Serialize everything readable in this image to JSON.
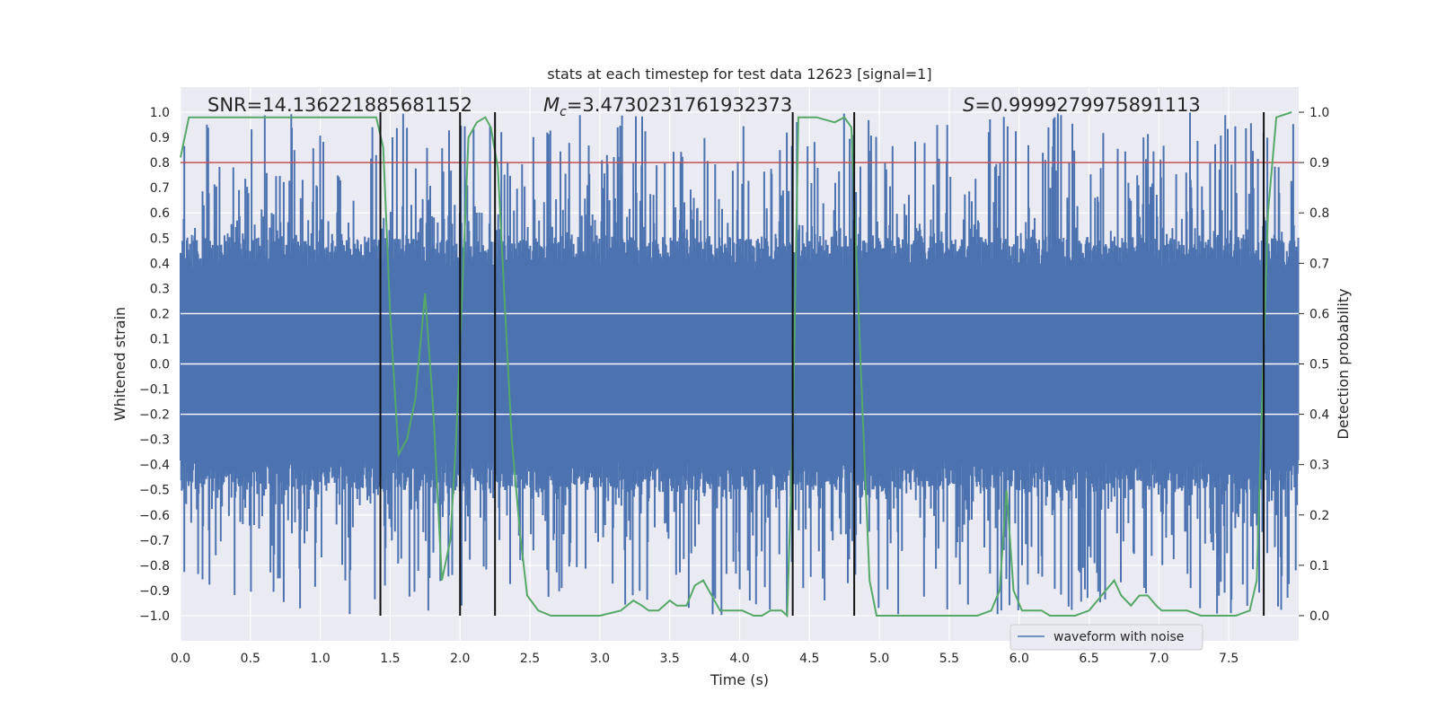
{
  "chart_data": {
    "type": "line",
    "title": "stats at each timestep for test data 12623 [signal=1]",
    "xlabel": "Time (s)",
    "ylabel": "Whitened strain",
    "y2label": "Detection probability",
    "xlim": [
      0,
      8
    ],
    "ylim": [
      -1.1,
      1.1
    ],
    "y2lim": [
      -0.05,
      1.05
    ],
    "x_ticks": [
      "0.0",
      "0.5",
      "1.0",
      "1.5",
      "2.0",
      "2.5",
      "3.0",
      "3.5",
      "4.0",
      "4.5",
      "5.0",
      "5.5",
      "6.0",
      "6.5",
      "7.0",
      "7.5"
    ],
    "x_tick_values": [
      0,
      0.5,
      1,
      1.5,
      2,
      2.5,
      3,
      3.5,
      4,
      4.5,
      5,
      5.5,
      6,
      6.5,
      7,
      7.5
    ],
    "y_ticks": [
      "1.0",
      "0.9",
      "0.8",
      "0.7",
      "0.6",
      "0.5",
      "0.4",
      "0.3",
      "0.2",
      "0.1",
      "0.0",
      "−0.1",
      "−0.2",
      "−0.3",
      "−0.4",
      "−0.5",
      "−0.6",
      "−0.7",
      "−0.8",
      "−0.9",
      "−1.0"
    ],
    "y_tick_values": [
      1.0,
      0.9,
      0.8,
      0.7,
      0.6,
      0.5,
      0.4,
      0.3,
      0.2,
      0.1,
      0.0,
      -0.1,
      -0.2,
      -0.3,
      -0.4,
      -0.5,
      -0.6,
      -0.7,
      -0.8,
      -0.9,
      -1.0
    ],
    "y2_ticks": [
      "1.0",
      "0.9",
      "0.8",
      "0.7",
      "0.6",
      "0.5",
      "0.4",
      "0.3",
      "0.2",
      "0.1",
      "0.0"
    ],
    "y2_tick_values": [
      1.0,
      0.9,
      0.8,
      0.7,
      0.6,
      0.5,
      0.4,
      0.3,
      0.2,
      0.1,
      0.0
    ],
    "annotations": {
      "snr": "SNR=14.136221885681152",
      "mc_value": "=3.4730231761932373",
      "s_value": "=0.9999279975891113"
    },
    "threshold_line": {
      "axis": "y2",
      "value": 0.9,
      "color": "#c44e52"
    },
    "vertical_lines_x": [
      1.43,
      2.0,
      2.25,
      4.38,
      4.82,
      7.75
    ],
    "series": [
      {
        "name": "waveform with noise",
        "color": "#4c72b0",
        "envelope": {
          "core": 0.38,
          "peak_min": 0.5,
          "peak_max": 1.0
        }
      },
      {
        "name": "detection probability",
        "color": "#55a868",
        "axis": "y2",
        "points": [
          [
            0.0,
            0.91
          ],
          [
            0.06,
            0.99
          ],
          [
            0.2,
            0.99
          ],
          [
            0.5,
            0.99
          ],
          [
            1.0,
            0.99
          ],
          [
            1.4,
            0.99
          ],
          [
            1.45,
            0.93
          ],
          [
            1.5,
            0.6
          ],
          [
            1.56,
            0.32
          ],
          [
            1.62,
            0.35
          ],
          [
            1.68,
            0.43
          ],
          [
            1.75,
            0.64
          ],
          [
            1.81,
            0.4
          ],
          [
            1.87,
            0.07
          ],
          [
            1.93,
            0.15
          ],
          [
            1.97,
            0.34
          ],
          [
            2.0,
            0.54
          ],
          [
            2.06,
            0.95
          ],
          [
            2.12,
            0.98
          ],
          [
            2.18,
            0.99
          ],
          [
            2.22,
            0.97
          ],
          [
            2.27,
            0.89
          ],
          [
            2.32,
            0.62
          ],
          [
            2.37,
            0.35
          ],
          [
            2.43,
            0.16
          ],
          [
            2.48,
            0.04
          ],
          [
            2.56,
            0.01
          ],
          [
            2.65,
            0.0
          ],
          [
            3.0,
            0.0
          ],
          [
            3.15,
            0.01
          ],
          [
            3.24,
            0.03
          ],
          [
            3.3,
            0.02
          ],
          [
            3.35,
            0.01
          ],
          [
            3.42,
            0.01
          ],
          [
            3.5,
            0.03
          ],
          [
            3.55,
            0.02
          ],
          [
            3.62,
            0.02
          ],
          [
            3.68,
            0.06
          ],
          [
            3.74,
            0.07
          ],
          [
            3.8,
            0.04
          ],
          [
            3.86,
            0.01
          ],
          [
            3.95,
            0.01
          ],
          [
            4.02,
            0.01
          ],
          [
            4.1,
            0.0
          ],
          [
            4.16,
            0.0
          ],
          [
            4.22,
            0.01
          ],
          [
            4.3,
            0.01
          ],
          [
            4.34,
            0.0
          ],
          [
            4.38,
            0.35
          ],
          [
            4.42,
            0.99
          ],
          [
            4.55,
            0.99
          ],
          [
            4.68,
            0.98
          ],
          [
            4.75,
            0.99
          ],
          [
            4.8,
            0.97
          ],
          [
            4.87,
            0.47
          ],
          [
            4.93,
            0.07
          ],
          [
            4.98,
            0.0
          ],
          [
            5.1,
            0.0
          ],
          [
            5.7,
            0.0
          ],
          [
            5.8,
            0.01
          ],
          [
            5.86,
            0.05
          ],
          [
            5.91,
            0.25
          ],
          [
            5.96,
            0.05
          ],
          [
            6.02,
            0.01
          ],
          [
            6.1,
            0.01
          ],
          [
            6.16,
            0.01
          ],
          [
            6.22,
            0.0
          ],
          [
            6.3,
            0.0
          ],
          [
            6.4,
            0.0
          ],
          [
            6.5,
            0.01
          ],
          [
            6.56,
            0.03
          ],
          [
            6.62,
            0.05
          ],
          [
            6.68,
            0.07
          ],
          [
            6.73,
            0.04
          ],
          [
            6.8,
            0.02
          ],
          [
            6.86,
            0.04
          ],
          [
            6.92,
            0.04
          ],
          [
            6.98,
            0.02
          ],
          [
            7.02,
            0.01
          ],
          [
            7.1,
            0.01
          ],
          [
            7.2,
            0.01
          ],
          [
            7.3,
            0.0
          ],
          [
            7.55,
            0.0
          ],
          [
            7.65,
            0.01
          ],
          [
            7.7,
            0.07
          ],
          [
            7.73,
            0.35
          ],
          [
            7.78,
            0.8
          ],
          [
            7.84,
            0.99
          ],
          [
            7.95,
            1.0
          ]
        ]
      }
    ],
    "legend": {
      "placement": "bottom-right",
      "entries": [
        "waveform with noise"
      ]
    },
    "grid": true
  }
}
